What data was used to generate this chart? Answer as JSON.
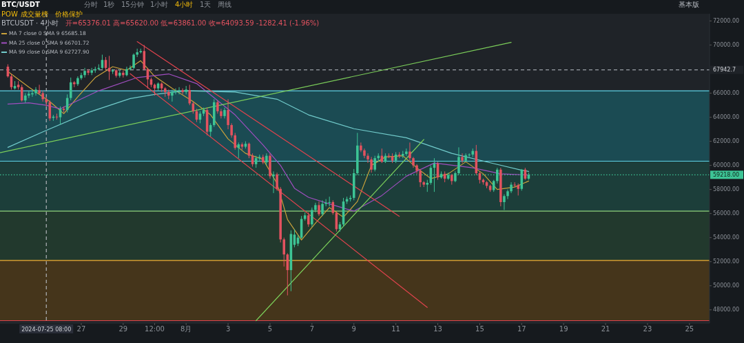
{
  "chart_data": {
    "type": "candlestick",
    "title": "BTC/USDT",
    "subtitle": "BTCUSDT · 4小时",
    "annotations": [
      "分时",
      "1秒",
      "15分钟",
      "1小时",
      "4小时",
      "1天",
      "周线",
      "POW",
      "成交量榜",
      "价格保护",
      "基本版",
      "开=65376.01 高=65620.00 低=63861.00 收=64093.59 -1282.41 (-1.96%)"
    ],
    "legend": "top left",
    "xlim": [
      "2024-07-23T03:00",
      "2024-08-25T23:00"
    ],
    "xticks": [
      {
        "value": "2024-07-27",
        "label": "27"
      },
      {
        "value": "2024-07-29",
        "label": "29"
      },
      {
        "value": "2024-07-30T12:00",
        "label": "12:00"
      },
      {
        "value": "2024-08-01",
        "label": "8月"
      },
      {
        "value": "2024-08-03",
        "label": "3"
      },
      {
        "value": "2024-08-05",
        "label": "5"
      },
      {
        "value": "2024-08-07",
        "label": "7"
      },
      {
        "value": "2024-08-09",
        "label": "9"
      },
      {
        "value": "2024-08-11",
        "label": "11"
      },
      {
        "value": "2024-08-13",
        "label": "13"
      },
      {
        "value": "2024-08-15",
        "label": "15"
      },
      {
        "value": "2024-08-17",
        "label": "17"
      },
      {
        "value": "2024-08-19",
        "label": "19"
      },
      {
        "value": "2024-08-21",
        "label": "21"
      },
      {
        "value": "2024-08-23",
        "label": "23"
      },
      {
        "value": "2024-08-25",
        "label": "25"
      }
    ],
    "ylim": [
      46900,
      72600
    ],
    "yticks": [
      {
        "value": 48000,
        "label": "48000.00"
      },
      {
        "value": 50000,
        "label": "50000.00"
      },
      {
        "value": 52000,
        "label": "52000.00"
      },
      {
        "value": 54000,
        "label": "54000.00"
      },
      {
        "value": 56000,
        "label": "56000.00"
      },
      {
        "value": 58000,
        "label": "58000.00"
      },
      {
        "value": 60000,
        "label": "60000.00"
      },
      {
        "value": 62000,
        "label": "62000.00"
      },
      {
        "value": 64000,
        "label": "64000.00"
      },
      {
        "value": 66000,
        "label": "66000.00"
      },
      {
        "value": 70000,
        "label": "70000.00"
      },
      {
        "value": 72000,
        "label": "72000.00"
      }
    ],
    "bands": [
      {
        "axis": "y",
        "from": 60350,
        "to": 66200,
        "color": "#1b4b53"
      },
      {
        "axis": "y",
        "from": 56200,
        "to": 60350,
        "color": "#1c3e3a"
      },
      {
        "axis": "y",
        "from": 52100,
        "to": 56200,
        "color": "#22392d"
      },
      {
        "axis": "y",
        "from": 47100,
        "to": 52100,
        "color": "#45351b"
      }
    ],
    "ref_lines": [
      {
        "axis": "y",
        "value": 66200,
        "color": "#5fd3e8"
      },
      {
        "axis": "y",
        "value": 60350,
        "color": "#5fd3e8"
      },
      {
        "axis": "y",
        "value": 56200,
        "color": "#8fd47c"
      },
      {
        "axis": "y",
        "value": 52100,
        "color": "#f2b134"
      },
      {
        "axis": "y",
        "value": 47100,
        "color": "#e0434d"
      },
      {
        "axis": "y",
        "value": 67942.7,
        "label": "67942.7",
        "color": "#9aa0a6",
        "line_style": "dashed"
      },
      {
        "axis": "y",
        "value": 59218,
        "label": "59218.00",
        "color": "#3dc495",
        "line_style": "dotted"
      },
      {
        "axis": "x",
        "value": "2024-07-25T08:00",
        "label": "2024-07-25  08:00",
        "color": "#b0b4b8",
        "line_style": "dashed"
      }
    ],
    "x": [
      "2024-07-23T12:00",
      "2024-07-23T16:00",
      "2024-07-23T20:00",
      "2024-07-24T00:00",
      "2024-07-24T04:00",
      "2024-07-24T08:00",
      "2024-07-24T12:00",
      "2024-07-24T16:00",
      "2024-07-24T20:00",
      "2024-07-25T00:00",
      "2024-07-25T04:00",
      "2024-07-25T08:00",
      "2024-07-25T12:00",
      "2024-07-25T16:00",
      "2024-07-25T20:00",
      "2024-07-26T00:00",
      "2024-07-26T04:00",
      "2024-07-26T08:00",
      "2024-07-26T12:00",
      "2024-07-26T16:00",
      "2024-07-26T20:00",
      "2024-07-27T00:00",
      "2024-07-27T04:00",
      "2024-07-27T08:00",
      "2024-07-27T12:00",
      "2024-07-27T16:00",
      "2024-07-27T20:00",
      "2024-07-28T00:00",
      "2024-07-28T04:00",
      "2024-07-28T08:00",
      "2024-07-28T12:00",
      "2024-07-28T16:00",
      "2024-07-28T20:00",
      "2024-07-29T00:00",
      "2024-07-29T04:00",
      "2024-07-29T08:00",
      "2024-07-29T12:00",
      "2024-07-29T16:00",
      "2024-07-29T20:00",
      "2024-07-30T00:00",
      "2024-07-30T04:00",
      "2024-07-30T08:00",
      "2024-07-30T12:00",
      "2024-07-30T16:00",
      "2024-07-30T20:00",
      "2024-07-31T00:00",
      "2024-07-31T04:00",
      "2024-07-31T08:00",
      "2024-07-31T12:00",
      "2024-07-31T16:00",
      "2024-07-31T20:00",
      "2024-08-01T00:00",
      "2024-08-01T04:00",
      "2024-08-01T08:00",
      "2024-08-01T12:00",
      "2024-08-01T16:00",
      "2024-08-01T20:00",
      "2024-08-02T00:00",
      "2024-08-02T04:00",
      "2024-08-02T08:00",
      "2024-08-02T12:00",
      "2024-08-02T16:00",
      "2024-08-02T20:00",
      "2024-08-03T00:00",
      "2024-08-03T04:00",
      "2024-08-03T08:00",
      "2024-08-03T12:00",
      "2024-08-03T16:00",
      "2024-08-03T20:00",
      "2024-08-04T00:00",
      "2024-08-04T04:00",
      "2024-08-04T08:00",
      "2024-08-04T12:00",
      "2024-08-04T16:00",
      "2024-08-04T20:00",
      "2024-08-05T00:00",
      "2024-08-05T04:00",
      "2024-08-05T08:00",
      "2024-08-05T12:00",
      "2024-08-05T16:00",
      "2024-08-05T20:00",
      "2024-08-06T00:00",
      "2024-08-06T04:00",
      "2024-08-06T08:00",
      "2024-08-06T12:00",
      "2024-08-06T16:00",
      "2024-08-06T20:00",
      "2024-08-07T00:00",
      "2024-08-07T04:00",
      "2024-08-07T08:00",
      "2024-08-07T12:00",
      "2024-08-07T16:00",
      "2024-08-07T20:00",
      "2024-08-08T00:00",
      "2024-08-08T04:00",
      "2024-08-08T08:00",
      "2024-08-08T12:00",
      "2024-08-08T16:00",
      "2024-08-08T20:00",
      "2024-08-09T00:00",
      "2024-08-09T04:00",
      "2024-08-09T08:00",
      "2024-08-09T12:00",
      "2024-08-09T16:00",
      "2024-08-09T20:00",
      "2024-08-10T00:00",
      "2024-08-10T04:00",
      "2024-08-10T08:00",
      "2024-08-10T12:00",
      "2024-08-10T16:00",
      "2024-08-10T20:00",
      "2024-08-11T00:00",
      "2024-08-11T04:00",
      "2024-08-11T08:00",
      "2024-08-11T12:00",
      "2024-08-11T16:00",
      "2024-08-11T20:00",
      "2024-08-12T00:00",
      "2024-08-12T04:00",
      "2024-08-12T08:00",
      "2024-08-12T12:00",
      "2024-08-12T16:00",
      "2024-08-12T20:00",
      "2024-08-13T00:00",
      "2024-08-13T04:00",
      "2024-08-13T08:00",
      "2024-08-13T12:00",
      "2024-08-13T16:00",
      "2024-08-13T20:00",
      "2024-08-14T00:00",
      "2024-08-14T04:00",
      "2024-08-14T08:00",
      "2024-08-14T12:00",
      "2024-08-14T16:00",
      "2024-08-14T20:00",
      "2024-08-15T00:00",
      "2024-08-15T04:00",
      "2024-08-15T08:00",
      "2024-08-15T12:00",
      "2024-08-15T16:00",
      "2024-08-15T20:00",
      "2024-08-16T00:00",
      "2024-08-16T04:00",
      "2024-08-16T08:00",
      "2024-08-16T12:00",
      "2024-08-16T16:00",
      "2024-08-16T20:00",
      "2024-08-17T00:00",
      "2024-08-17T04:00",
      "2024-08-17T08:00"
    ],
    "ohlc": [
      [
        68200,
        68400,
        67300,
        67400
      ],
      [
        67400,
        67600,
        66300,
        66500
      ],
      [
        66400,
        67000,
        66300,
        66600
      ],
      [
        66700,
        67000,
        66300,
        66500
      ],
      [
        66500,
        66700,
        65300,
        65400
      ],
      [
        65400,
        66000,
        65200,
        65800
      ],
      [
        65800,
        66200,
        65600,
        65950
      ],
      [
        65900,
        66300,
        65700,
        66000
      ],
      [
        66000,
        66500,
        65800,
        66300
      ],
      [
        66250,
        66700,
        65900,
        66000
      ],
      [
        66000,
        66200,
        65300,
        65500
      ],
      [
        65500,
        65700,
        64900,
        65250
      ],
      [
        65250,
        65400,
        63700,
        63900
      ],
      [
        63950,
        64200,
        63700,
        64050
      ],
      [
        64050,
        64300,
        63800,
        64000
      ],
      [
        64000,
        64900,
        63400,
        64700
      ],
      [
        64700,
        64900,
        64400,
        64600
      ],
      [
        64600,
        65900,
        64400,
        65600
      ],
      [
        65600,
        67300,
        65400,
        66900
      ],
      [
        66900,
        67000,
        66500,
        66750
      ],
      [
        66750,
        67400,
        66600,
        67250
      ],
      [
        67250,
        67700,
        67100,
        67500
      ],
      [
        67500,
        68100,
        67300,
        67850
      ],
      [
        67850,
        68000,
        67500,
        67700
      ],
      [
        67700,
        68100,
        67500,
        67900
      ],
      [
        67900,
        68200,
        67700,
        68000
      ],
      [
        68000,
        68400,
        67900,
        68100
      ],
      [
        68100,
        69200,
        68000,
        68760
      ],
      [
        68760,
        69000,
        67900,
        68100
      ],
      [
        68100,
        69100,
        67100,
        67800
      ],
      [
        67800,
        68000,
        67600,
        67900
      ],
      [
        67900,
        68000,
        67300,
        67450
      ],
      [
        67450,
        67900,
        67300,
        67700
      ],
      [
        67700,
        67900,
        67300,
        67500
      ],
      [
        67500,
        68200,
        67400,
        68000
      ],
      [
        68000,
        68300,
        67900,
        68100
      ],
      [
        68100,
        69300,
        68000,
        69200
      ],
      [
        69200,
        69700,
        69000,
        69400
      ],
      [
        69400,
        69700,
        69300,
        69500
      ],
      [
        69500,
        70000,
        67900,
        68000
      ],
      [
        68000,
        68100,
        66400,
        67150
      ],
      [
        67150,
        67300,
        66500,
        66700
      ],
      [
        66700,
        66800,
        65800,
        66400
      ],
      [
        66400,
        66900,
        66200,
        66800
      ],
      [
        66800,
        66900,
        66100,
        66400
      ],
      [
        66400,
        66500,
        65700,
        66100
      ],
      [
        66100,
        66300,
        65500,
        65800
      ],
      [
        65800,
        66300,
        65300,
        66100
      ],
      [
        66100,
        66400,
        65900,
        66200
      ],
      [
        66200,
        66500,
        65900,
        66250
      ],
      [
        66250,
        66400,
        65900,
        66100
      ],
      [
        66100,
        66600,
        65900,
        66300
      ],
      [
        66250,
        66700,
        65000,
        65150
      ],
      [
        65150,
        65300,
        64300,
        64500
      ],
      [
        64500,
        64700,
        63600,
        63800
      ],
      [
        63800,
        64500,
        63500,
        64300
      ],
      [
        64300,
        64800,
        64100,
        64600
      ],
      [
        64600,
        64800,
        62500,
        62800
      ],
      [
        62800,
        63500,
        62400,
        63350
      ],
      [
        63350,
        65500,
        63200,
        65250
      ],
      [
        65250,
        65400,
        64300,
        64500
      ],
      [
        64500,
        64700,
        63900,
        64100
      ],
      [
        64100,
        64800,
        63900,
        64600
      ],
      [
        64600,
        65500,
        63000,
        63350
      ],
      [
        63350,
        63500,
        62300,
        62500
      ],
      [
        62500,
        62700,
        61300,
        61450
      ],
      [
        61450,
        61900,
        60600,
        61750
      ],
      [
        61750,
        61900,
        61300,
        61550
      ],
      [
        61550,
        62000,
        61400,
        61800
      ],
      [
        61800,
        61900,
        60600,
        60800
      ],
      [
        60800,
        61000,
        59900,
        60100
      ],
      [
        60100,
        60800,
        59800,
        60600
      ],
      [
        60600,
        60900,
        60400,
        60700
      ],
      [
        60700,
        60900,
        60100,
        60250
      ],
      [
        60250,
        61000,
        60000,
        60800
      ],
      [
        60800,
        61000,
        58900,
        59100
      ],
      [
        59100,
        59500,
        57700,
        59250
      ],
      [
        59250,
        59400,
        57900,
        58050
      ],
      [
        58050,
        58200,
        53600,
        53850
      ],
      [
        53850,
        54000,
        51600,
        52600
      ],
      [
        52600,
        52700,
        49200,
        51300
      ],
      [
        51300,
        54600,
        49550,
        54300
      ],
      [
        53400,
        54700,
        53200,
        54250
      ],
      [
        53500,
        54200,
        53300,
        54000
      ],
      [
        54000,
        55800,
        53900,
        55550
      ],
      [
        55550,
        56100,
        55400,
        55850
      ],
      [
        55850,
        56100,
        54900,
        55100
      ],
      [
        55100,
        56500,
        54900,
        56300
      ],
      [
        56300,
        56900,
        56100,
        56700
      ],
      [
        56700,
        57000,
        55800,
        55950
      ],
      [
        55950,
        57100,
        55800,
        56800
      ],
      [
        56800,
        57200,
        56600,
        56900
      ],
      [
        56900,
        57400,
        56600,
        56950
      ],
      [
        56950,
        57100,
        55900,
        56050
      ],
      [
        56050,
        56200,
        54500,
        54700
      ],
      [
        54700,
        55300,
        54500,
        55100
      ],
      [
        55100,
        57300,
        54900,
        57000
      ],
      [
        57000,
        57400,
        56800,
        57200
      ],
      [
        57200,
        57500,
        57000,
        57300
      ],
      [
        57300,
        59700,
        57100,
        59350
      ],
      [
        59350,
        62700,
        59200,
        61650
      ],
      [
        61650,
        61900,
        61100,
        61250
      ],
      [
        61250,
        61400,
        60600,
        60800
      ],
      [
        60800,
        61000,
        60200,
        60500
      ],
      [
        60500,
        60700,
        59400,
        59650
      ],
      [
        59650,
        60800,
        59500,
        60600
      ],
      [
        60600,
        61000,
        60300,
        60800
      ],
      [
        60800,
        61400,
        60200,
        60300
      ],
      [
        60300,
        61000,
        60200,
        60800
      ],
      [
        60800,
        61000,
        60600,
        60750
      ],
      [
        60750,
        61000,
        60200,
        60400
      ],
      [
        60400,
        61100,
        60200,
        60900
      ],
      [
        60900,
        61100,
        60600,
        60800
      ],
      [
        60800,
        61200,
        60600,
        60950
      ],
      [
        60950,
        61400,
        60800,
        61150
      ],
      [
        61150,
        61900,
        60400,
        60600
      ],
      [
        60600,
        60700,
        59800,
        60000
      ],
      [
        60000,
        60100,
        59300,
        59550
      ],
      [
        59550,
        59700,
        58200,
        58600
      ],
      [
        58600,
        58700,
        58200,
        58400
      ],
      [
        58400,
        58800,
        57800,
        58550
      ],
      [
        58550,
        60000,
        58400,
        59800
      ],
      [
        59800,
        60600,
        57800,
        60150
      ],
      [
        60150,
        60300,
        58800,
        59000
      ],
      [
        59000,
        59500,
        58900,
        59300
      ],
      [
        59300,
        59500,
        58600,
        58900
      ],
      [
        58900,
        59400,
        58800,
        59200
      ],
      [
        59200,
        59300,
        58400,
        58700
      ],
      [
        58700,
        59500,
        58600,
        59350
      ],
      [
        59350,
        61500,
        59200,
        60700
      ],
      [
        60700,
        61000,
        60200,
        60400
      ],
      [
        60400,
        61000,
        60300,
        60850
      ],
      [
        60850,
        61000,
        60700,
        60900
      ],
      [
        60900,
        61400,
        60700,
        61200
      ],
      [
        61200,
        61700,
        59200,
        59350
      ],
      [
        59350,
        59500,
        58500,
        58800
      ],
      [
        58800,
        58900,
        58400,
        58600
      ],
      [
        58600,
        58700,
        58100,
        58300
      ],
      [
        58300,
        58400,
        57800,
        57950
      ],
      [
        57950,
        58800,
        57800,
        58700
      ],
      [
        58700,
        59800,
        58500,
        59650
      ],
      [
        59650,
        59800,
        56600,
        56950
      ],
      [
        56950,
        57600,
        56300,
        57450
      ],
      [
        57450,
        58000,
        57200,
        57850
      ],
      [
        57850,
        58600,
        57700,
        58400
      ],
      [
        58400,
        58600,
        58200,
        58350
      ],
      [
        58350,
        58500,
        57500,
        58050
      ],
      [
        58050,
        59700,
        57900,
        59650
      ],
      [
        59650,
        59800,
        58800,
        58900
      ],
      [
        58900,
        59400,
        58800,
        59218
      ]
    ],
    "colors": [
      "#e2525f",
      "#e2525f",
      "#3dc495",
      "#e2525f",
      "#e2525f",
      "#3dc495",
      "#3dc495",
      "#3dc495",
      "#3dc495",
      "#e2525f",
      "#e2525f",
      "#e2525f",
      "#e2525f",
      "#3dc495",
      "#e2525f",
      "#3dc495",
      "#e2525f",
      "#3dc495",
      "#3dc495",
      "#e2525f",
      "#3dc495",
      "#3dc495",
      "#3dc495",
      "#e2525f",
      "#3dc495",
      "#3dc495",
      "#3dc495",
      "#3dc495",
      "#e2525f",
      "#e2525f",
      "#3dc495",
      "#e2525f",
      "#3dc495",
      "#e2525f",
      "#3dc495",
      "#3dc495",
      "#3dc495",
      "#3dc495",
      "#3dc495",
      "#e2525f",
      "#e2525f",
      "#e2525f",
      "#e2525f",
      "#3dc495",
      "#e2525f",
      "#e2525f",
      "#e2525f",
      "#3dc495",
      "#3dc495",
      "#3dc495",
      "#e2525f",
      "#3dc495",
      "#e2525f",
      "#e2525f",
      "#e2525f",
      "#3dc495",
      "#3dc495",
      "#e2525f",
      "#3dc495",
      "#3dc495",
      "#e2525f",
      "#e2525f",
      "#3dc495",
      "#e2525f",
      "#e2525f",
      "#e2525f",
      "#3dc495",
      "#e2525f",
      "#3dc495",
      "#e2525f",
      "#e2525f",
      "#3dc495",
      "#3dc495",
      "#e2525f",
      "#3dc495",
      "#e2525f",
      "#3dc495",
      "#e2525f",
      "#e2525f",
      "#e2525f",
      "#e2525f",
      "#3dc495",
      "#3dc495",
      "#3dc495",
      "#3dc495",
      "#3dc495",
      "#e2525f",
      "#3dc495",
      "#3dc495",
      "#e2525f",
      "#3dc495",
      "#3dc495",
      "#3dc495",
      "#e2525f",
      "#e2525f",
      "#3dc495",
      "#3dc495",
      "#3dc495",
      "#3dc495",
      "#3dc495",
      "#3dc495",
      "#e2525f",
      "#e2525f",
      "#e2525f",
      "#e2525f",
      "#3dc495",
      "#3dc495",
      "#e2525f",
      "#3dc495",
      "#e2525f",
      "#e2525f",
      "#3dc495",
      "#e2525f",
      "#3dc495",
      "#3dc495",
      "#e2525f",
      "#e2525f",
      "#e2525f",
      "#e2525f",
      "#e2525f",
      "#3dc495",
      "#3dc495",
      "#3dc495",
      "#e2525f",
      "#3dc495",
      "#e2525f",
      "#3dc495",
      "#e2525f",
      "#3dc495",
      "#3dc495",
      "#e2525f",
      "#3dc495",
      "#3dc495",
      "#3dc495",
      "#e2525f",
      "#e2525f",
      "#e2525f",
      "#e2525f",
      "#e2525f",
      "#3dc495",
      "#3dc495",
      "#e2525f",
      "#3dc495",
      "#3dc495",
      "#3dc495",
      "#e2525f",
      "#e2525f",
      "#3dc495",
      "#e2525f",
      "#3dc495"
    ],
    "series": [
      {
        "type": "line",
        "name": "MA 7 close 0 SMA 9  65685.18",
        "color": "#c9a13b",
        "x": [
          "2024-07-23T12:00",
          "2024-07-24T12:00",
          "2024-07-25T12:00",
          "2024-07-26T04:00",
          "2024-07-26T20:00",
          "2024-07-27T16:00",
          "2024-07-28T12:00",
          "2024-07-29T04:00",
          "2024-07-29T20:00",
          "2024-07-30T12:00",
          "2024-07-31T08:00",
          "2024-08-01T08:00",
          "2024-08-02T04:00",
          "2024-08-03T00:00",
          "2024-08-03T20:00",
          "2024-08-04T16:00",
          "2024-08-05T08:00",
          "2024-08-05T20:00",
          "2024-08-06T12:00",
          "2024-08-07T04:00",
          "2024-08-07T20:00",
          "2024-08-08T12:00",
          "2024-08-09T04:00",
          "2024-08-09T20:00",
          "2024-08-10T12:00",
          "2024-08-11T08:00",
          "2024-08-12T00:00",
          "2024-08-12T16:00",
          "2024-08-13T12:00",
          "2024-08-14T08:00",
          "2024-08-15T04:00",
          "2024-08-15T20:00",
          "2024-08-16T16:00",
          "2024-08-17T08:00"
        ],
        "values": [
          67800,
          66500,
          65300,
          64300,
          65700,
          67300,
          68200,
          67900,
          68700,
          67400,
          66400,
          65300,
          64200,
          62200,
          61000,
          60500,
          58500,
          55500,
          53800,
          55200,
          56500,
          55700,
          57000,
          60000,
          60700,
          60800,
          59800,
          58900,
          59300,
          60300,
          59300,
          58000,
          58200,
          58700
        ]
      },
      {
        "type": "line",
        "name": "MA 25 close 0 SMA 9  66701.72",
        "color": "#a04ec0",
        "x": [
          "2024-07-23T12:00",
          "2024-07-24T12:00",
          "2024-07-25T08:00",
          "2024-07-26T00:00",
          "2024-07-27T20:00",
          "2024-07-29T16:00",
          "2024-07-31T04:00",
          "2024-08-01T12:00",
          "2024-08-03T08:00",
          "2024-08-04T16:00",
          "2024-08-05T12:00",
          "2024-08-06T04:00",
          "2024-08-06T20:00",
          "2024-08-07T20:00",
          "2024-08-09T00:00",
          "2024-08-10T08:00",
          "2024-08-11T12:00",
          "2024-08-12T20:00",
          "2024-08-14T16:00",
          "2024-08-16T00:00",
          "2024-08-17T08:00"
        ],
        "values": [
          65100,
          65200,
          65000,
          64700,
          66200,
          67300,
          67600,
          66800,
          64200,
          61700,
          60000,
          58100,
          57350,
          56800,
          56200,
          57500,
          59100,
          60200,
          59800,
          59300,
          59200
        ]
      },
      {
        "type": "line",
        "name": "MA 99 close 0 SMA 9  62727.90",
        "color": "#72cccc",
        "x": [
          "2024-07-23T12:00",
          "2024-07-25T06:00",
          "2024-07-27T08:00",
          "2024-07-29T08:00",
          "2024-07-30T12:00",
          "2024-08-01T00:00",
          "2024-08-03T08:00",
          "2024-08-05T08:00",
          "2024-08-06T20:00",
          "2024-08-09T00:00",
          "2024-08-11T12:00",
          "2024-08-13T16:00",
          "2024-08-15T16:00",
          "2024-08-17T00:00",
          "2024-08-17T08:00"
        ],
        "values": [
          61500,
          62850,
          64400,
          65550,
          65900,
          66200,
          66100,
          65500,
          64200,
          63050,
          62300,
          61000,
          60150,
          59600,
          59500
        ]
      },
      {
        "type": "line",
        "color": "#e0434d",
        "x": [
          "2024-07-29T16:00",
          "2024-08-11T04:00"
        ],
        "values": [
          70280,
          55770
        ]
      },
      {
        "type": "line",
        "color": "#e0434d",
        "x": [
          "2024-07-29T08:00",
          "2024-08-12T12:00"
        ],
        "values": [
          67620,
          48200
        ]
      },
      {
        "type": "line",
        "color": "#7ccf5a",
        "x": [
          "2024-07-23T03:00",
          "2024-08-16T12:00"
        ],
        "values": [
          61060,
          70220
        ]
      },
      {
        "type": "line",
        "color": "#7ccf5a",
        "x": [
          "2024-08-04T08:00",
          "2024-08-12T08:00"
        ],
        "values": [
          47100,
          62150
        ]
      }
    ]
  }
}
